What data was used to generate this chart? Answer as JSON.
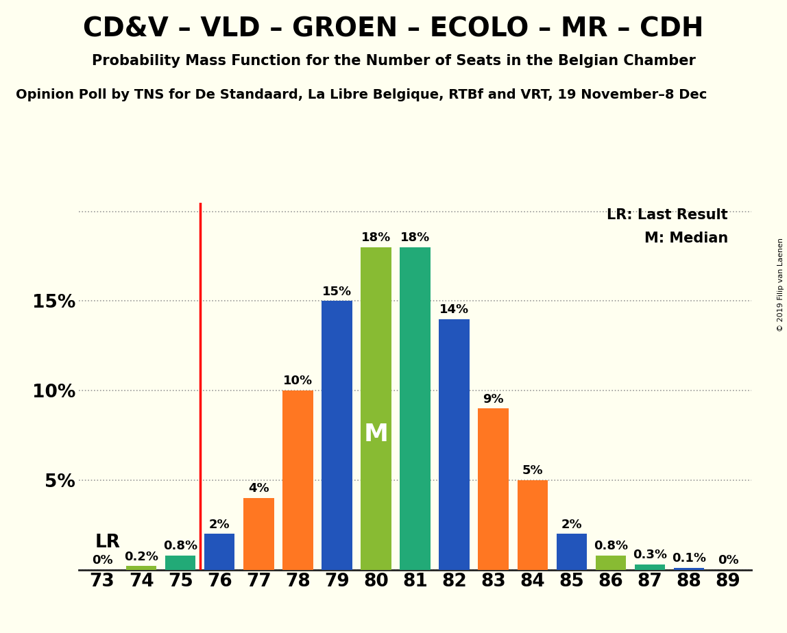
{
  "title": "CD&V – VLD – GROEN – ECOLO – MR – CDH",
  "subtitle": "Probability Mass Function for the Number of Seats in the Belgian Chamber",
  "source": "Opinion Poll by TNS for De Standaard, La Libre Belgique, RTBf and VRT, 19 November–8 Dec",
  "copyright": "© 2019 Filip van Laenen",
  "categories": [
    73,
    74,
    75,
    76,
    77,
    78,
    79,
    80,
    81,
    82,
    83,
    84,
    85,
    86,
    87,
    88,
    89
  ],
  "values": [
    0.0,
    0.2,
    0.8,
    2.0,
    4.0,
    10.0,
    15.0,
    18.0,
    18.0,
    14.0,
    9.0,
    5.0,
    2.0,
    0.8,
    0.3,
    0.1,
    0.0
  ],
  "colors": [
    "#2255BB",
    "#88BB33",
    "#22AA77",
    "#2255BB",
    "#FF7722",
    "#FF7722",
    "#2255BB",
    "#88BB33",
    "#22AA77",
    "#2255BB",
    "#FF7722",
    "#FF7722",
    "#2255BB",
    "#88BB33",
    "#22AA77",
    "#2255BB",
    "#FF7722"
  ],
  "labels": [
    "0%",
    "0.2%",
    "0.8%",
    "2%",
    "4%",
    "10%",
    "15%",
    "18%",
    "18%",
    "14%",
    "9%",
    "5%",
    "2%",
    "0.8%",
    "0.3%",
    "0.1%",
    "0%"
  ],
  "lr_seat": 75,
  "median_seat": 80,
  "ylim_max": 20.5,
  "ytick_vals": [
    0,
    5,
    10,
    15,
    20
  ],
  "ytick_labels": [
    "",
    "5%",
    "10%",
    "15%",
    ""
  ],
  "background_color": "#FFFFF0",
  "grid_color": "#999999",
  "lr_label": "LR",
  "median_label": "M",
  "legend_lr": "LR: Last Result",
  "legend_m": "M: Median",
  "title_fontsize": 28,
  "subtitle_fontsize": 15,
  "source_fontsize": 14,
  "ytick_fontsize": 19,
  "xtick_fontsize": 19,
  "bar_label_fontsize": 13,
  "legend_fontsize": 15,
  "median_fontsize": 26,
  "lr_fontsize": 19
}
